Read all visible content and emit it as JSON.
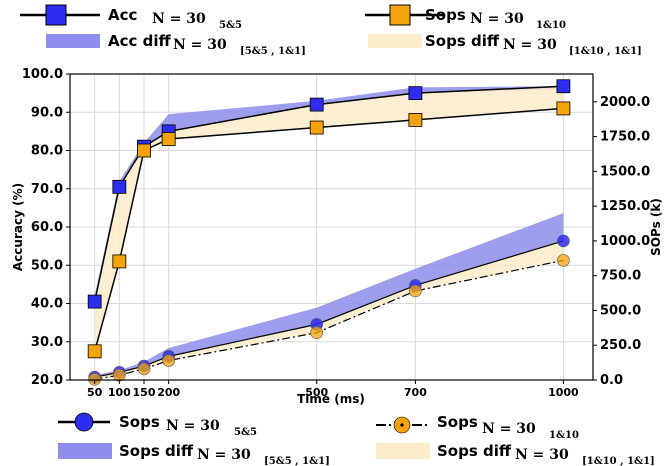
{
  "chart_data": {
    "type": "line",
    "xlabel": "Time (ms)",
    "ylabel_left": "Accuracy (%)",
    "ylabel_right": "SOPs (k)",
    "x": [
      50,
      100,
      150,
      200,
      500,
      700,
      1000
    ],
    "xticks": [
      "50",
      "100",
      "150",
      "200",
      "500",
      "700",
      "1000"
    ],
    "ylim_left": [
      20,
      100
    ],
    "yticks_left": [
      "20.0",
      "30.0",
      "40.0",
      "50.0",
      "60.0",
      "70.0",
      "80.0",
      "90.0",
      "100.0"
    ],
    "ylim_right": [
      0,
      2200
    ],
    "yticks_right": [
      "0.0",
      "250.0",
      "500.0",
      "750.0",
      "1000.0",
      "1250.0",
      "1500.0",
      "1750.0",
      "2000.0"
    ],
    "grid": true,
    "series": [
      {
        "name": "Acc",
        "axis": "left",
        "marker": "square",
        "color": "#2d2df0",
        "values": [
          40.5,
          70.5,
          81,
          85,
          92,
          95,
          96.8
        ]
      },
      {
        "name": "Sops",
        "axis": "left",
        "marker": "square",
        "color": "#f5a30a",
        "values": [
          27.5,
          51,
          80,
          83,
          86,
          88,
          91
        ]
      },
      {
        "name": "Sops",
        "axis": "right",
        "marker": "circle",
        "color": "#2d2df0",
        "values": [
          20,
          55,
          100,
          170,
          400,
          680,
          1000
        ]
      },
      {
        "name": "Sops",
        "axis": "right",
        "marker": "circle",
        "color": "#f5a30a",
        "values": [
          5,
          35,
          80,
          140,
          340,
          640,
          860
        ]
      }
    ],
    "bands": [
      {
        "name": "Acc diff",
        "axis": "left",
        "color": "#8d8deb",
        "lower": [
          40.5,
          70.5,
          81,
          85,
          92,
          95,
          96
        ],
        "upper": [
          42,
          72,
          82,
          89.5,
          93,
          96.5,
          96.8
        ]
      },
      {
        "name": "Sops diff",
        "axis": "left",
        "color": "#fcecc9",
        "lower": [
          27.5,
          51,
          80,
          83,
          86,
          88,
          91
        ],
        "upper": [
          40.5,
          70.5,
          81,
          85,
          92,
          95,
          96.8
        ]
      },
      {
        "name": "Sops diff",
        "axis": "right",
        "color": "#8d8deb",
        "lower": [
          20,
          55,
          100,
          170,
          400,
          680,
          1000
        ],
        "upper": [
          35,
          70,
          130,
          230,
          520,
          800,
          1200
        ]
      },
      {
        "name": "Sops diff",
        "axis": "right",
        "color": "#fcecc9",
        "lower": [
          5,
          35,
          80,
          140,
          340,
          640,
          860
        ],
        "upper": [
          20,
          55,
          100,
          170,
          400,
          680,
          1000
        ]
      }
    ]
  },
  "legend_top": [
    {
      "label": "Acc",
      "n": "N = 30",
      "sub": "5&5"
    },
    {
      "label": "Sops",
      "n": "N = 30",
      "sub": "1&10"
    },
    {
      "label": "Acc diff",
      "n": "N = 30",
      "sub": "[5&5 , 1&1]"
    },
    {
      "label": "Sops diff",
      "n": "N = 30",
      "sub": "[1&10 , 1&1]"
    }
  ],
  "legend_bottom": [
    {
      "label": "Sops",
      "n": "N = 30",
      "sub": "5&5"
    },
    {
      "label": "Sops",
      "n": "N = 30",
      "sub": "1&10"
    },
    {
      "label": "Sops diff",
      "n": "N = 30",
      "sub": "[5&5 , 1&1]"
    },
    {
      "label": "Sops diff",
      "n": "N = 30",
      "sub": "[1&10 , 1&1]"
    }
  ]
}
